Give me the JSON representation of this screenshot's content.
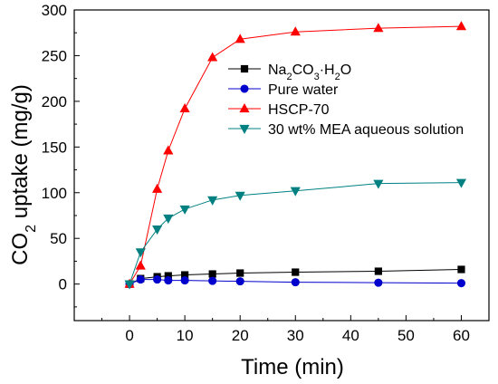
{
  "chart_data": {
    "type": "line",
    "xlabel": "Time (min)",
    "ylabel": "CO2 uptake (mg/g)",
    "ylabel_parts": {
      "pre": "CO",
      "sub": "2",
      "post": " uptake (mg/g)"
    },
    "xlim": [
      -10,
      65
    ],
    "ylim": [
      -40,
      300
    ],
    "xticks": [
      0,
      10,
      20,
      30,
      40,
      50,
      60
    ],
    "yticks": [
      0,
      50,
      100,
      150,
      200,
      250,
      300
    ],
    "grid": false,
    "legend_position": "right",
    "series": [
      {
        "name": "Na2CO3·H2O",
        "name_parts": [
          {
            "t": "Na",
            "s": false
          },
          {
            "t": "2",
            "s": true
          },
          {
            "t": "CO",
            "s": false
          },
          {
            "t": "3",
            "s": true
          },
          {
            "t": "·H",
            "s": false
          },
          {
            "t": "2",
            "s": true
          },
          {
            "t": "O",
            "s": false
          }
        ],
        "color": "#000000",
        "marker": "square",
        "x": [
          0,
          2,
          5,
          7,
          10,
          15,
          20,
          30,
          45,
          60
        ],
        "y": [
          0,
          6,
          8,
          9,
          10,
          11,
          12,
          13,
          14,
          16
        ]
      },
      {
        "name": "Pure water",
        "name_parts": [
          {
            "t": "Pure water",
            "s": false
          }
        ],
        "color": "#0000cc",
        "marker": "circle",
        "x": [
          0,
          2,
          5,
          7,
          10,
          15,
          20,
          30,
          45,
          60
        ],
        "y": [
          0,
          5,
          5,
          4,
          4,
          3.5,
          3,
          2,
          1.5,
          1
        ]
      },
      {
        "name": "HSCP-70",
        "name_parts": [
          {
            "t": "HSCP-70",
            "s": false
          }
        ],
        "color": "#ff0000",
        "marker": "triangle-up",
        "x": [
          0,
          2,
          5,
          7,
          10,
          15,
          20,
          30,
          45,
          60
        ],
        "y": [
          0,
          20,
          104,
          146,
          192,
          248,
          268,
          276,
          280,
          282
        ]
      },
      {
        "name": "30 wt% MEA aqueous solution",
        "name_parts": [
          {
            "t": "30 wt% MEA aqueous solution",
            "s": false
          }
        ],
        "color": "#008080",
        "marker": "triangle-down",
        "x": [
          0,
          2,
          5,
          7,
          10,
          15,
          20,
          30,
          45,
          60
        ],
        "y": [
          0,
          35,
          60,
          72,
          82,
          92,
          97,
          102,
          110,
          111
        ]
      }
    ]
  }
}
